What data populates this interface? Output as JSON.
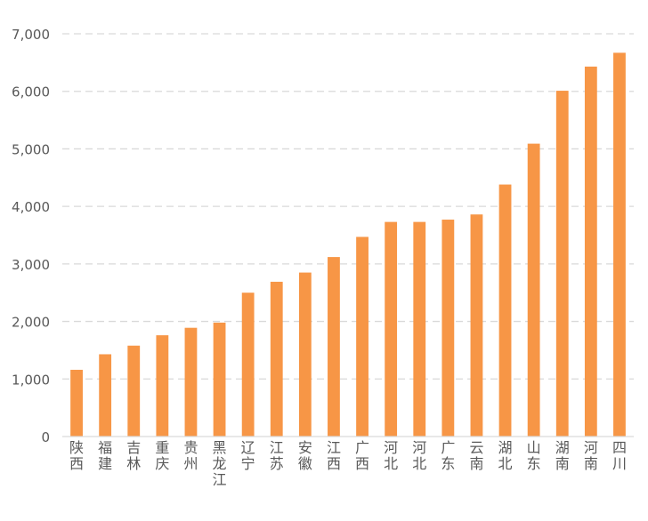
{
  "chart_data": {
    "type": "bar",
    "title": "",
    "xlabel": "",
    "ylabel": "",
    "ylim": [
      0,
      7000
    ],
    "yticks": [
      0,
      1000,
      2000,
      3000,
      4000,
      5000,
      6000,
      7000
    ],
    "ytick_labels": [
      "0",
      "1,000",
      "2,000",
      "3,000",
      "4,000",
      "5,000",
      "6,000",
      "7,000"
    ],
    "grid": true,
    "legend": "none",
    "bar_color": "#F79646",
    "grid_color": "#D9D9D9",
    "categories": [
      "陕西",
      "福建",
      "吉林",
      "重庆",
      "贵州",
      "黑龙江",
      "辽宁",
      "江苏",
      "安徽",
      "江西",
      "广西",
      "河北",
      "河北",
      "广东",
      "云南",
      "湖北",
      "山东",
      "湖南",
      "河南",
      "四川"
    ],
    "values": [
      1160,
      1430,
      1580,
      1760,
      1890,
      1980,
      2500,
      2690,
      2850,
      3120,
      3470,
      3730,
      3730,
      3770,
      3860,
      4380,
      5090,
      6010,
      6430,
      6670
    ]
  }
}
